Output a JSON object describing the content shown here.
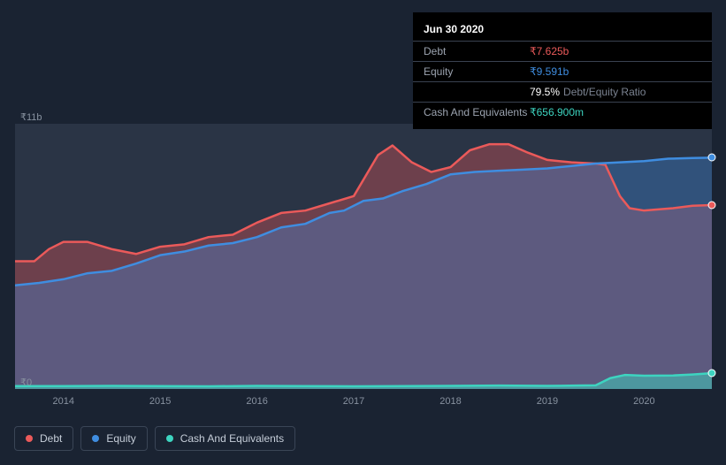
{
  "tooltip": {
    "date": "Jun 30 2020",
    "rows": [
      {
        "label": "Debt",
        "value": "₹7.625b",
        "color": "#eb5a5a"
      },
      {
        "label": "Equity",
        "value": "₹9.591b",
        "color": "#3f8de0"
      },
      {
        "label": "",
        "ratioValue": "79.5%",
        "ratioLabel": "Debt/Equity Ratio"
      },
      {
        "label": "Cash And Equivalents",
        "value": "₹656.900m",
        "color": "#3dd4c0"
      }
    ]
  },
  "chart": {
    "type": "area",
    "background": "#1a2332",
    "plotBackground": "#2a3445",
    "gridColor": "#3a4250",
    "xAxis": {
      "min": 2013.5,
      "max": 2020.7,
      "ticks": [
        2014,
        2015,
        2016,
        2017,
        2018,
        2019,
        2020
      ]
    },
    "yAxis": {
      "min": 0,
      "max": 11,
      "unit": "b",
      "ticks": [
        {
          "v": 0,
          "label": "₹0"
        },
        {
          "v": 11,
          "label": "₹11b"
        }
      ]
    },
    "series": [
      {
        "name": "Debt",
        "color": "#eb5a5a",
        "fillOpacity": 0.35,
        "lineWidth": 2.5,
        "data": [
          [
            2013.5,
            5.3
          ],
          [
            2013.7,
            5.3
          ],
          [
            2013.85,
            5.8
          ],
          [
            2014.0,
            6.1
          ],
          [
            2014.25,
            6.1
          ],
          [
            2014.5,
            5.8
          ],
          [
            2014.75,
            5.6
          ],
          [
            2015.0,
            5.9
          ],
          [
            2015.25,
            6.0
          ],
          [
            2015.5,
            6.3
          ],
          [
            2015.75,
            6.4
          ],
          [
            2016.0,
            6.9
          ],
          [
            2016.25,
            7.3
          ],
          [
            2016.5,
            7.4
          ],
          [
            2016.75,
            7.7
          ],
          [
            2017.0,
            8.0
          ],
          [
            2017.25,
            9.7
          ],
          [
            2017.4,
            10.1
          ],
          [
            2017.6,
            9.4
          ],
          [
            2017.8,
            9.0
          ],
          [
            2018.0,
            9.2
          ],
          [
            2018.2,
            9.9
          ],
          [
            2018.4,
            10.15
          ],
          [
            2018.6,
            10.15
          ],
          [
            2018.8,
            9.8
          ],
          [
            2019.0,
            9.5
          ],
          [
            2019.25,
            9.4
          ],
          [
            2019.5,
            9.35
          ],
          [
            2019.6,
            9.3
          ],
          [
            2019.75,
            8.0
          ],
          [
            2019.85,
            7.5
          ],
          [
            2020.0,
            7.4
          ],
          [
            2020.3,
            7.5
          ],
          [
            2020.5,
            7.6
          ],
          [
            2020.7,
            7.625
          ]
        ]
      },
      {
        "name": "Equity",
        "color": "#3f8de0",
        "fillOpacity": 0.35,
        "lineWidth": 2.5,
        "data": [
          [
            2013.5,
            4.3
          ],
          [
            2013.75,
            4.4
          ],
          [
            2014.0,
            4.55
          ],
          [
            2014.25,
            4.8
          ],
          [
            2014.5,
            4.9
          ],
          [
            2014.75,
            5.2
          ],
          [
            2015.0,
            5.55
          ],
          [
            2015.25,
            5.7
          ],
          [
            2015.5,
            5.95
          ],
          [
            2015.75,
            6.05
          ],
          [
            2016.0,
            6.3
          ],
          [
            2016.25,
            6.7
          ],
          [
            2016.5,
            6.85
          ],
          [
            2016.75,
            7.3
          ],
          [
            2016.9,
            7.4
          ],
          [
            2017.1,
            7.8
          ],
          [
            2017.3,
            7.9
          ],
          [
            2017.5,
            8.2
          ],
          [
            2017.75,
            8.5
          ],
          [
            2018.0,
            8.9
          ],
          [
            2018.25,
            9.0
          ],
          [
            2018.5,
            9.05
          ],
          [
            2018.75,
            9.1
          ],
          [
            2019.0,
            9.15
          ],
          [
            2019.25,
            9.25
          ],
          [
            2019.5,
            9.35
          ],
          [
            2019.75,
            9.4
          ],
          [
            2020.0,
            9.45
          ],
          [
            2020.25,
            9.55
          ],
          [
            2020.5,
            9.58
          ],
          [
            2020.7,
            9.591
          ]
        ]
      },
      {
        "name": "Cash And Equivalents",
        "color": "#3dd4c0",
        "fillOpacity": 0.5,
        "lineWidth": 2.5,
        "data": [
          [
            2013.5,
            0.12
          ],
          [
            2014.0,
            0.12
          ],
          [
            2014.5,
            0.13
          ],
          [
            2015.0,
            0.12
          ],
          [
            2015.5,
            0.11
          ],
          [
            2016.0,
            0.13
          ],
          [
            2016.5,
            0.12
          ],
          [
            2017.0,
            0.11
          ],
          [
            2017.5,
            0.12
          ],
          [
            2018.0,
            0.13
          ],
          [
            2018.5,
            0.14
          ],
          [
            2019.0,
            0.13
          ],
          [
            2019.3,
            0.14
          ],
          [
            2019.5,
            0.15
          ],
          [
            2019.65,
            0.45
          ],
          [
            2019.8,
            0.58
          ],
          [
            2020.0,
            0.55
          ],
          [
            2020.3,
            0.56
          ],
          [
            2020.5,
            0.6
          ],
          [
            2020.7,
            0.657
          ]
        ]
      }
    ]
  },
  "legend": [
    {
      "label": "Debt",
      "color": "#eb5a5a"
    },
    {
      "label": "Equity",
      "color": "#3f8de0"
    },
    {
      "label": "Cash And Equivalents",
      "color": "#3dd4c0"
    }
  ]
}
